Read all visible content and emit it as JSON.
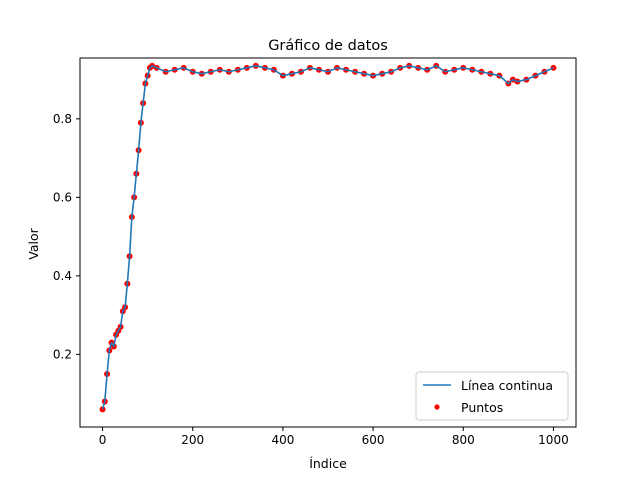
{
  "chart_data": {
    "type": "line",
    "title": "Gráfico de datos",
    "xlabel": "Índice",
    "ylabel": "Valor",
    "xlim": [
      -50,
      1050
    ],
    "ylim": [
      0.015,
      0.955
    ],
    "xticks": [
      0,
      200,
      400,
      600,
      800,
      1000
    ],
    "xtick_labels": [
      "0",
      "200",
      "400",
      "600",
      "800",
      "1000"
    ],
    "yticks": [
      0.2,
      0.4,
      0.6,
      0.8
    ],
    "ytick_labels": [
      "0.2",
      "0.4",
      "0.6",
      "0.8"
    ],
    "grid": false,
    "legend_position": "lower right",
    "series": [
      {
        "name": "Línea continua",
        "kind": "line",
        "color": "#1f77b4"
      },
      {
        "name": "Puntos",
        "kind": "scatter",
        "color": "#ff0000"
      }
    ],
    "x": [
      0,
      5,
      10,
      15,
      20,
      25,
      30,
      35,
      40,
      45,
      50,
      55,
      60,
      65,
      70,
      75,
      80,
      85,
      90,
      95,
      100,
      105,
      110,
      120,
      140,
      160,
      180,
      200,
      220,
      240,
      260,
      280,
      300,
      320,
      340,
      360,
      380,
      400,
      420,
      440,
      460,
      480,
      500,
      520,
      540,
      560,
      580,
      600,
      620,
      640,
      660,
      680,
      700,
      720,
      740,
      760,
      780,
      800,
      820,
      840,
      860,
      880,
      900,
      910,
      920,
      940,
      960,
      980,
      1000
    ],
    "values": [
      0.06,
      0.08,
      0.15,
      0.21,
      0.23,
      0.22,
      0.25,
      0.26,
      0.27,
      0.31,
      0.32,
      0.38,
      0.45,
      0.55,
      0.6,
      0.66,
      0.72,
      0.79,
      0.84,
      0.89,
      0.91,
      0.93,
      0.935,
      0.93,
      0.92,
      0.925,
      0.93,
      0.92,
      0.915,
      0.92,
      0.925,
      0.92,
      0.925,
      0.93,
      0.935,
      0.93,
      0.925,
      0.91,
      0.915,
      0.92,
      0.93,
      0.925,
      0.92,
      0.93,
      0.925,
      0.92,
      0.915,
      0.91,
      0.915,
      0.92,
      0.93,
      0.935,
      0.93,
      0.925,
      0.935,
      0.92,
      0.925,
      0.93,
      0.925,
      0.92,
      0.915,
      0.91,
      0.89,
      0.9,
      0.895,
      0.9,
      0.91,
      0.92,
      0.93
    ]
  }
}
